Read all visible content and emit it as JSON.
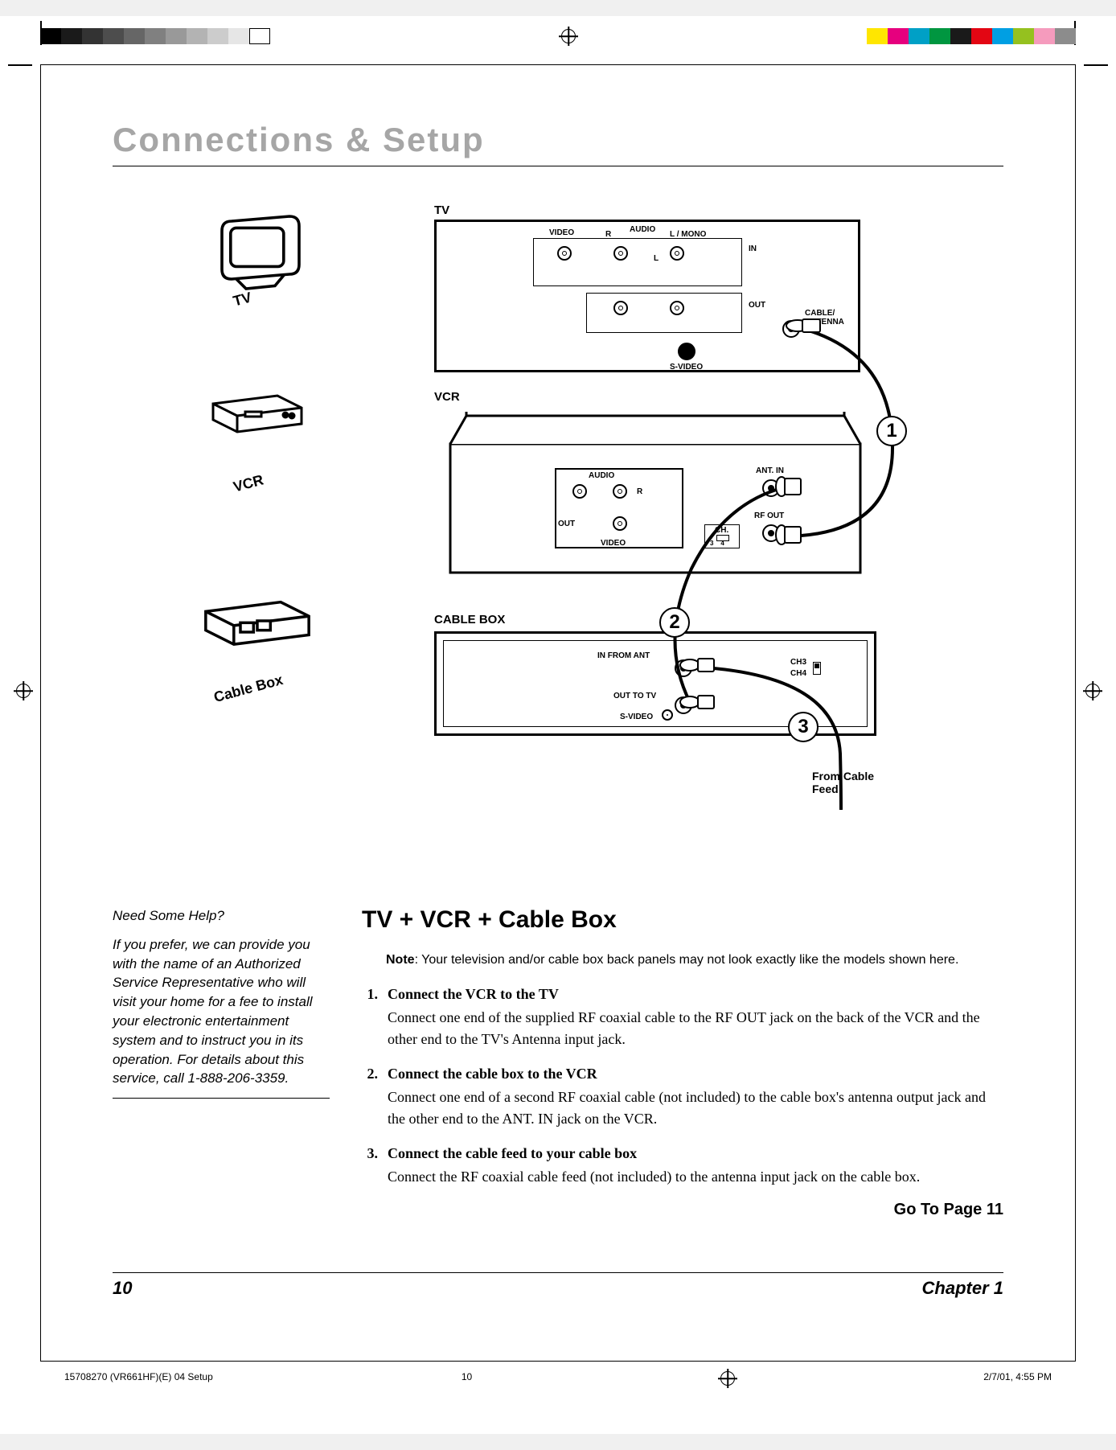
{
  "page": {
    "section_title": "Connections & Setup",
    "page_number": "10",
    "chapter": "Chapter 1"
  },
  "print": {
    "gray_swatches": [
      "#000000",
      "#1a1a1a",
      "#333333",
      "#4d4d4d",
      "#666666",
      "#808080",
      "#999999",
      "#b3b3b3",
      "#cccccc",
      "#e6e6e6",
      "#ffffff"
    ],
    "color_swatches": [
      "#ffe600",
      "#e6007e",
      "#00a0c6",
      "#009640",
      "#1a1a1a",
      "#e30613",
      "#009fe3",
      "#95c11f",
      "#f59bbd",
      "#8c8c8c"
    ],
    "footer_doc": "15708270 (VR661HF)(E) 04 Setup",
    "footer_page": "10",
    "footer_datetime": "2/7/01, 4:55 PM"
  },
  "diagram": {
    "icons": {
      "tv_label": "TV",
      "vcr_label": "VCR",
      "cablebox_label": "Cable Box"
    },
    "tv_panel": {
      "title": "TV",
      "video": "VIDEO",
      "audio": "AUDIO",
      "r": "R",
      "l_mono": "L / MONO",
      "l": "L",
      "in": "IN",
      "out": "OUT",
      "svideo": "S-VIDEO",
      "cable_antenna": "CABLE/\nANTENNA"
    },
    "vcr_panel": {
      "title": "VCR",
      "audio": "AUDIO",
      "r": "R",
      "out": "OUT",
      "video": "VIDEO",
      "ant_in": "ANT. IN",
      "rf_out": "RF OUT",
      "ch": "CH.",
      "ch34": "3    4"
    },
    "cable_panel": {
      "title": "CABLE BOX",
      "in_from_ant": "IN FROM ANT",
      "out_to_tv": "OUT TO TV",
      "svideo": "S-VIDEO",
      "ch3": "CH3",
      "ch4": "CH4"
    },
    "callouts": {
      "n1": "1",
      "n2": "2",
      "n3": "3",
      "from_cable_feed": "From Cable\nFeed"
    }
  },
  "sidebar": {
    "title": "Need Some Help?",
    "body": "If you prefer, we can provide you with the name of an Authorized Service Representative who will visit your home for a fee to install your electronic entertainment system and to instruct you in its operation. For details about this service, call 1-888-206-3359."
  },
  "main": {
    "subtitle": "TV + VCR + Cable Box",
    "note_label": "Note",
    "note_text": ": Your television and/or cable box back panels may not look exactly like the models shown here.",
    "steps": [
      {
        "num": "1.",
        "head": "Connect the VCR to the TV",
        "body": "Connect one end of the supplied RF coaxial cable to the RF OUT jack on the back of the VCR and the other end to the TV's Antenna input jack."
      },
      {
        "num": "2.",
        "head": "Connect the cable box to the VCR",
        "body": "Connect one end of a second RF coaxial cable (not included) to the cable box's antenna output jack and the other end to the ANT. IN jack on the VCR."
      },
      {
        "num": "3.",
        "head": "Connect the cable feed to your cable box",
        "body": "Connect the RF coaxial cable feed (not included) to the antenna input jack on the cable box."
      }
    ],
    "goto": "Go To Page 11"
  }
}
